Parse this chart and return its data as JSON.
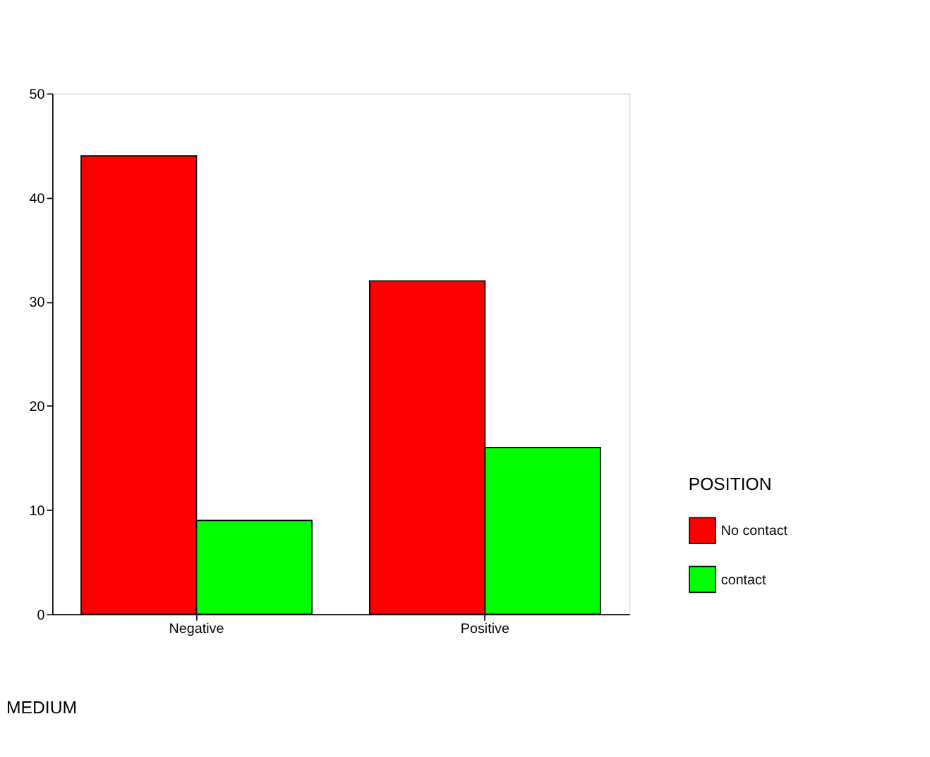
{
  "chart_data": {
    "type": "bar",
    "xlabel": "MEDIUM",
    "legend_title": "POSITION",
    "categories": [
      "Negative",
      "Positive"
    ],
    "series": [
      {
        "name": "No contact",
        "color": "#ff0000",
        "values": [
          44,
          32
        ]
      },
      {
        "name": "contact",
        "color": "#00ff00",
        "values": [
          9,
          16
        ]
      }
    ],
    "ylim": [
      0,
      50
    ],
    "yticks": [
      0,
      10,
      20,
      30,
      40,
      50
    ],
    "grid": false,
    "legend": "right"
  }
}
